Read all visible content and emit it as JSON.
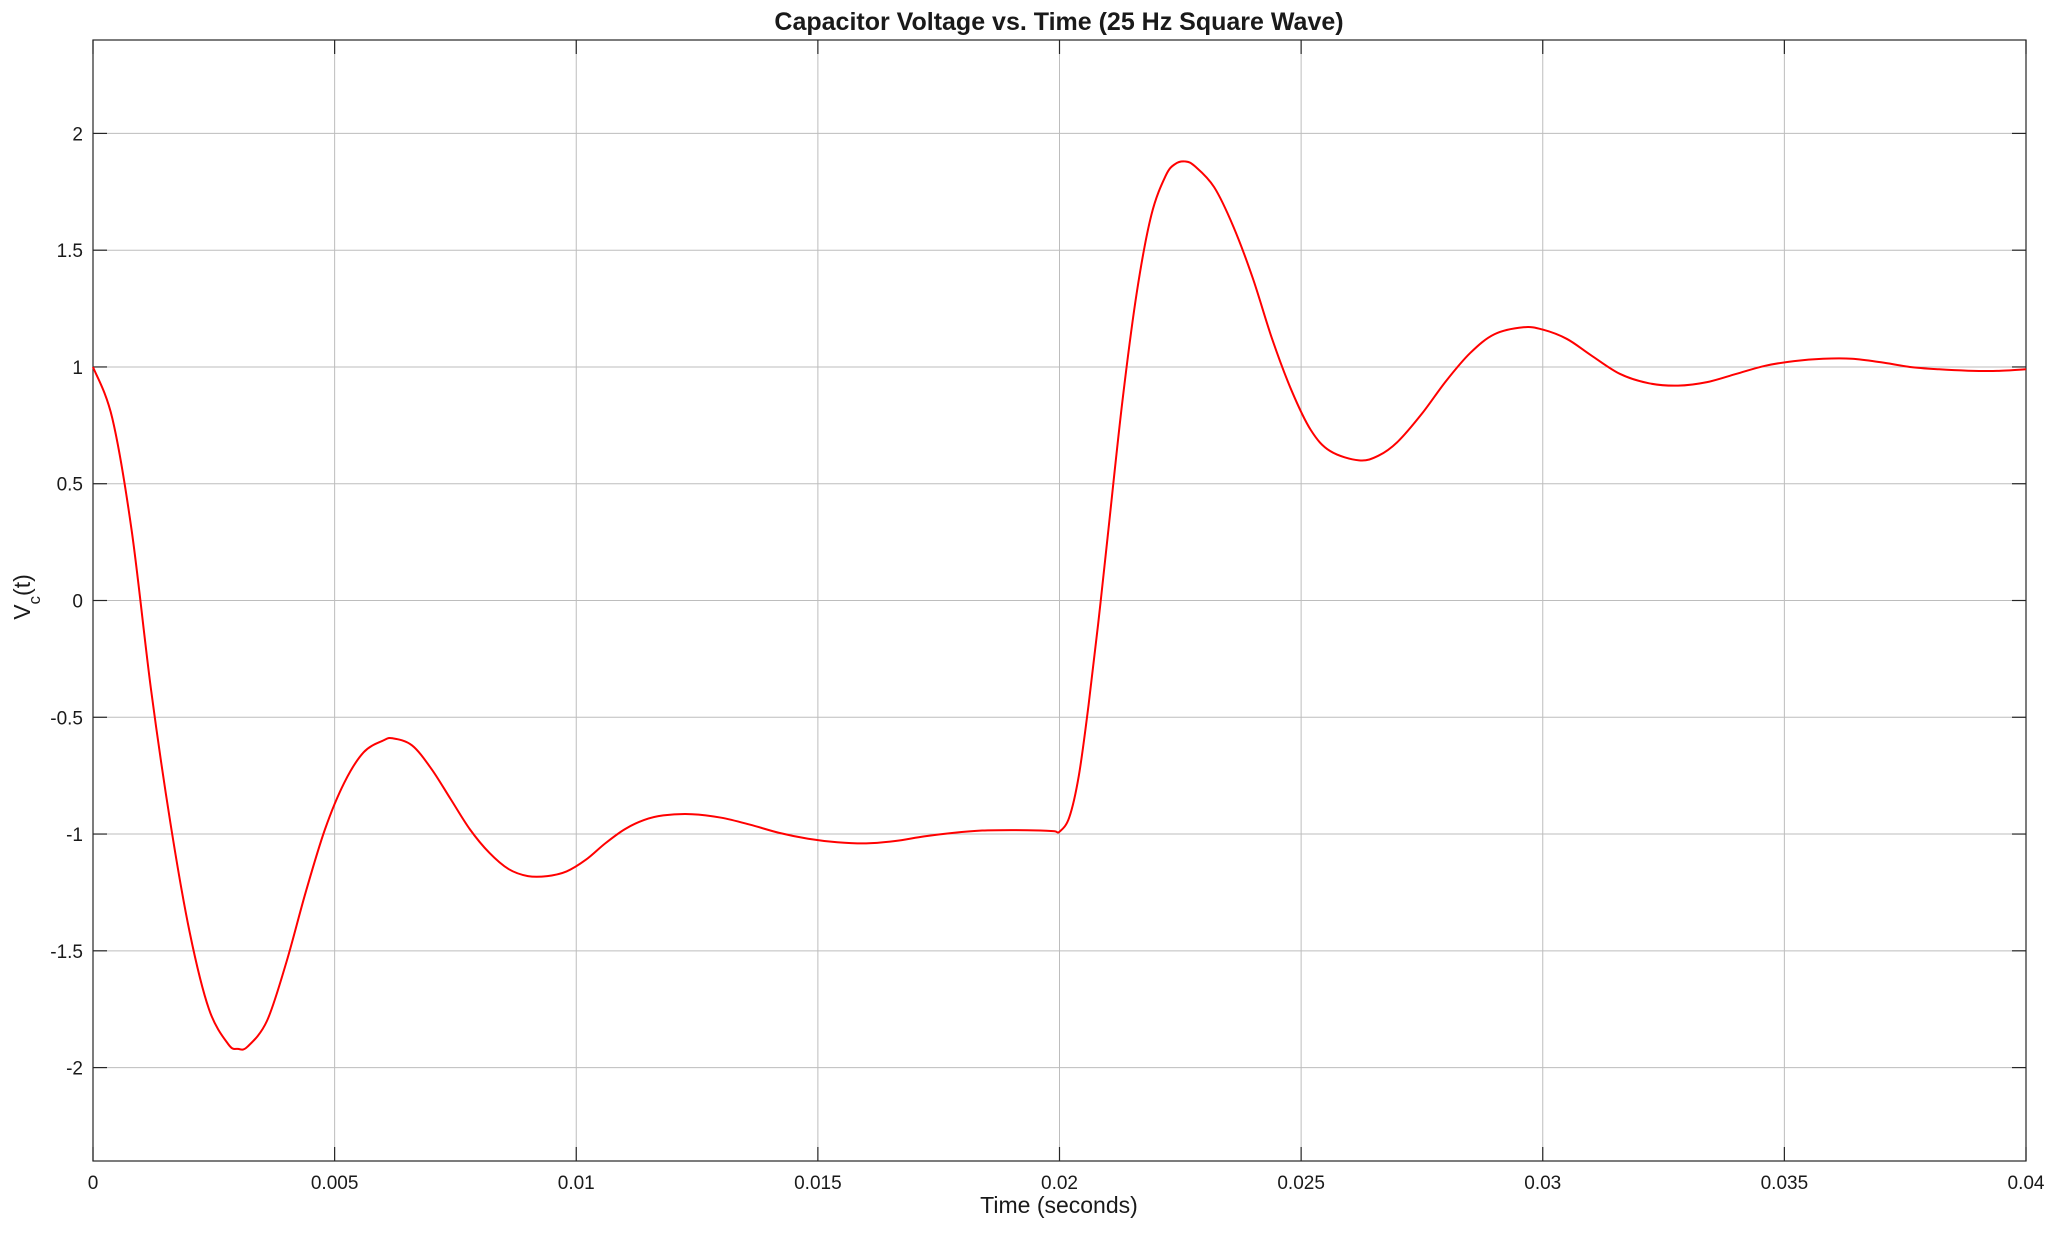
{
  "chart_data": {
    "type": "line",
    "title": "Capacitor Voltage vs. Time (25 Hz Square Wave)",
    "xlabel": "Time (seconds)",
    "ylabel": {
      "base": "V",
      "subscript": "c",
      "suffix": "(t)"
    },
    "xlim": [
      0,
      0.04
    ],
    "ylim": [
      -2.4,
      2.4
    ],
    "x_ticks": [
      0,
      0.005,
      0.01,
      0.015,
      0.02,
      0.025,
      0.03,
      0.035,
      0.04
    ],
    "x_tick_labels": [
      "0",
      "0.005",
      "0.01",
      "0.015",
      "0.02",
      "0.025",
      "0.03",
      "0.035",
      "0.04"
    ],
    "y_ticks": [
      -2,
      -1.5,
      -1,
      -0.5,
      0,
      0.5,
      1,
      1.5,
      2
    ],
    "y_tick_labels": [
      "-2",
      "-1.5",
      "-1",
      "-0.5",
      "0",
      "0.5",
      "1",
      "1.5",
      "2"
    ],
    "grid": true,
    "legend": "none",
    "series": [
      {
        "color": "#ff0000",
        "points": [
          [
            0,
            1.0
          ],
          [
            0.0004,
            0.78
          ],
          [
            0.0008,
            0.3
          ],
          [
            0.0012,
            -0.38
          ],
          [
            0.0016,
            -0.95
          ],
          [
            0.002,
            -1.42
          ],
          [
            0.0024,
            -1.75
          ],
          [
            0.0028,
            -1.9
          ],
          [
            0.003,
            -1.92
          ],
          [
            0.0032,
            -1.91
          ],
          [
            0.0036,
            -1.8
          ],
          [
            0.004,
            -1.55
          ],
          [
            0.0044,
            -1.25
          ],
          [
            0.0048,
            -0.98
          ],
          [
            0.0052,
            -0.78
          ],
          [
            0.0056,
            -0.65
          ],
          [
            0.006,
            -0.6
          ],
          [
            0.0062,
            -0.59
          ],
          [
            0.0066,
            -0.62
          ],
          [
            0.007,
            -0.72
          ],
          [
            0.0074,
            -0.85
          ],
          [
            0.0078,
            -0.98
          ],
          [
            0.0082,
            -1.08
          ],
          [
            0.0086,
            -1.15
          ],
          [
            0.009,
            -1.18
          ],
          [
            0.0094,
            -1.18
          ],
          [
            0.0098,
            -1.16
          ],
          [
            0.0102,
            -1.11
          ],
          [
            0.0106,
            -1.04
          ],
          [
            0.011,
            -0.98
          ],
          [
            0.0114,
            -0.94
          ],
          [
            0.0118,
            -0.92
          ],
          [
            0.0124,
            -0.915
          ],
          [
            0.013,
            -0.93
          ],
          [
            0.0136,
            -0.96
          ],
          [
            0.0142,
            -0.995
          ],
          [
            0.0148,
            -1.02
          ],
          [
            0.0154,
            -1.035
          ],
          [
            0.016,
            -1.04
          ],
          [
            0.0166,
            -1.03
          ],
          [
            0.0172,
            -1.01
          ],
          [
            0.0178,
            -0.995
          ],
          [
            0.0184,
            -0.985
          ],
          [
            0.019,
            -0.983
          ],
          [
            0.0196,
            -0.985
          ],
          [
            0.0199,
            -0.988
          ],
          [
            0.02,
            -0.99
          ],
          [
            0.0202,
            -0.93
          ],
          [
            0.0204,
            -0.75
          ],
          [
            0.0206,
            -0.45
          ],
          [
            0.0208,
            -0.1
          ],
          [
            0.021,
            0.28
          ],
          [
            0.0213,
            0.85
          ],
          [
            0.0216,
            1.32
          ],
          [
            0.0219,
            1.65
          ],
          [
            0.0222,
            1.82
          ],
          [
            0.0224,
            1.87
          ],
          [
            0.0226,
            1.88
          ],
          [
            0.0228,
            1.86
          ],
          [
            0.0232,
            1.77
          ],
          [
            0.0236,
            1.6
          ],
          [
            0.024,
            1.38
          ],
          [
            0.0244,
            1.12
          ],
          [
            0.0248,
            0.9
          ],
          [
            0.0252,
            0.73
          ],
          [
            0.0256,
            0.64
          ],
          [
            0.0262,
            0.6
          ],
          [
            0.0266,
            0.62
          ],
          [
            0.027,
            0.68
          ],
          [
            0.0275,
            0.8
          ],
          [
            0.028,
            0.94
          ],
          [
            0.0285,
            1.06
          ],
          [
            0.029,
            1.14
          ],
          [
            0.0296,
            1.17
          ],
          [
            0.03,
            1.16
          ],
          [
            0.0305,
            1.12
          ],
          [
            0.031,
            1.05
          ],
          [
            0.0316,
            0.97
          ],
          [
            0.0322,
            0.93
          ],
          [
            0.0328,
            0.92
          ],
          [
            0.0334,
            0.935
          ],
          [
            0.034,
            0.97
          ],
          [
            0.0346,
            1.005
          ],
          [
            0.0352,
            1.025
          ],
          [
            0.0358,
            1.035
          ],
          [
            0.0364,
            1.035
          ],
          [
            0.037,
            1.02
          ],
          [
            0.0376,
            1.0
          ],
          [
            0.0382,
            0.99
          ],
          [
            0.0388,
            0.984
          ],
          [
            0.0394,
            0.983
          ],
          [
            0.04,
            0.99
          ]
        ]
      }
    ]
  }
}
